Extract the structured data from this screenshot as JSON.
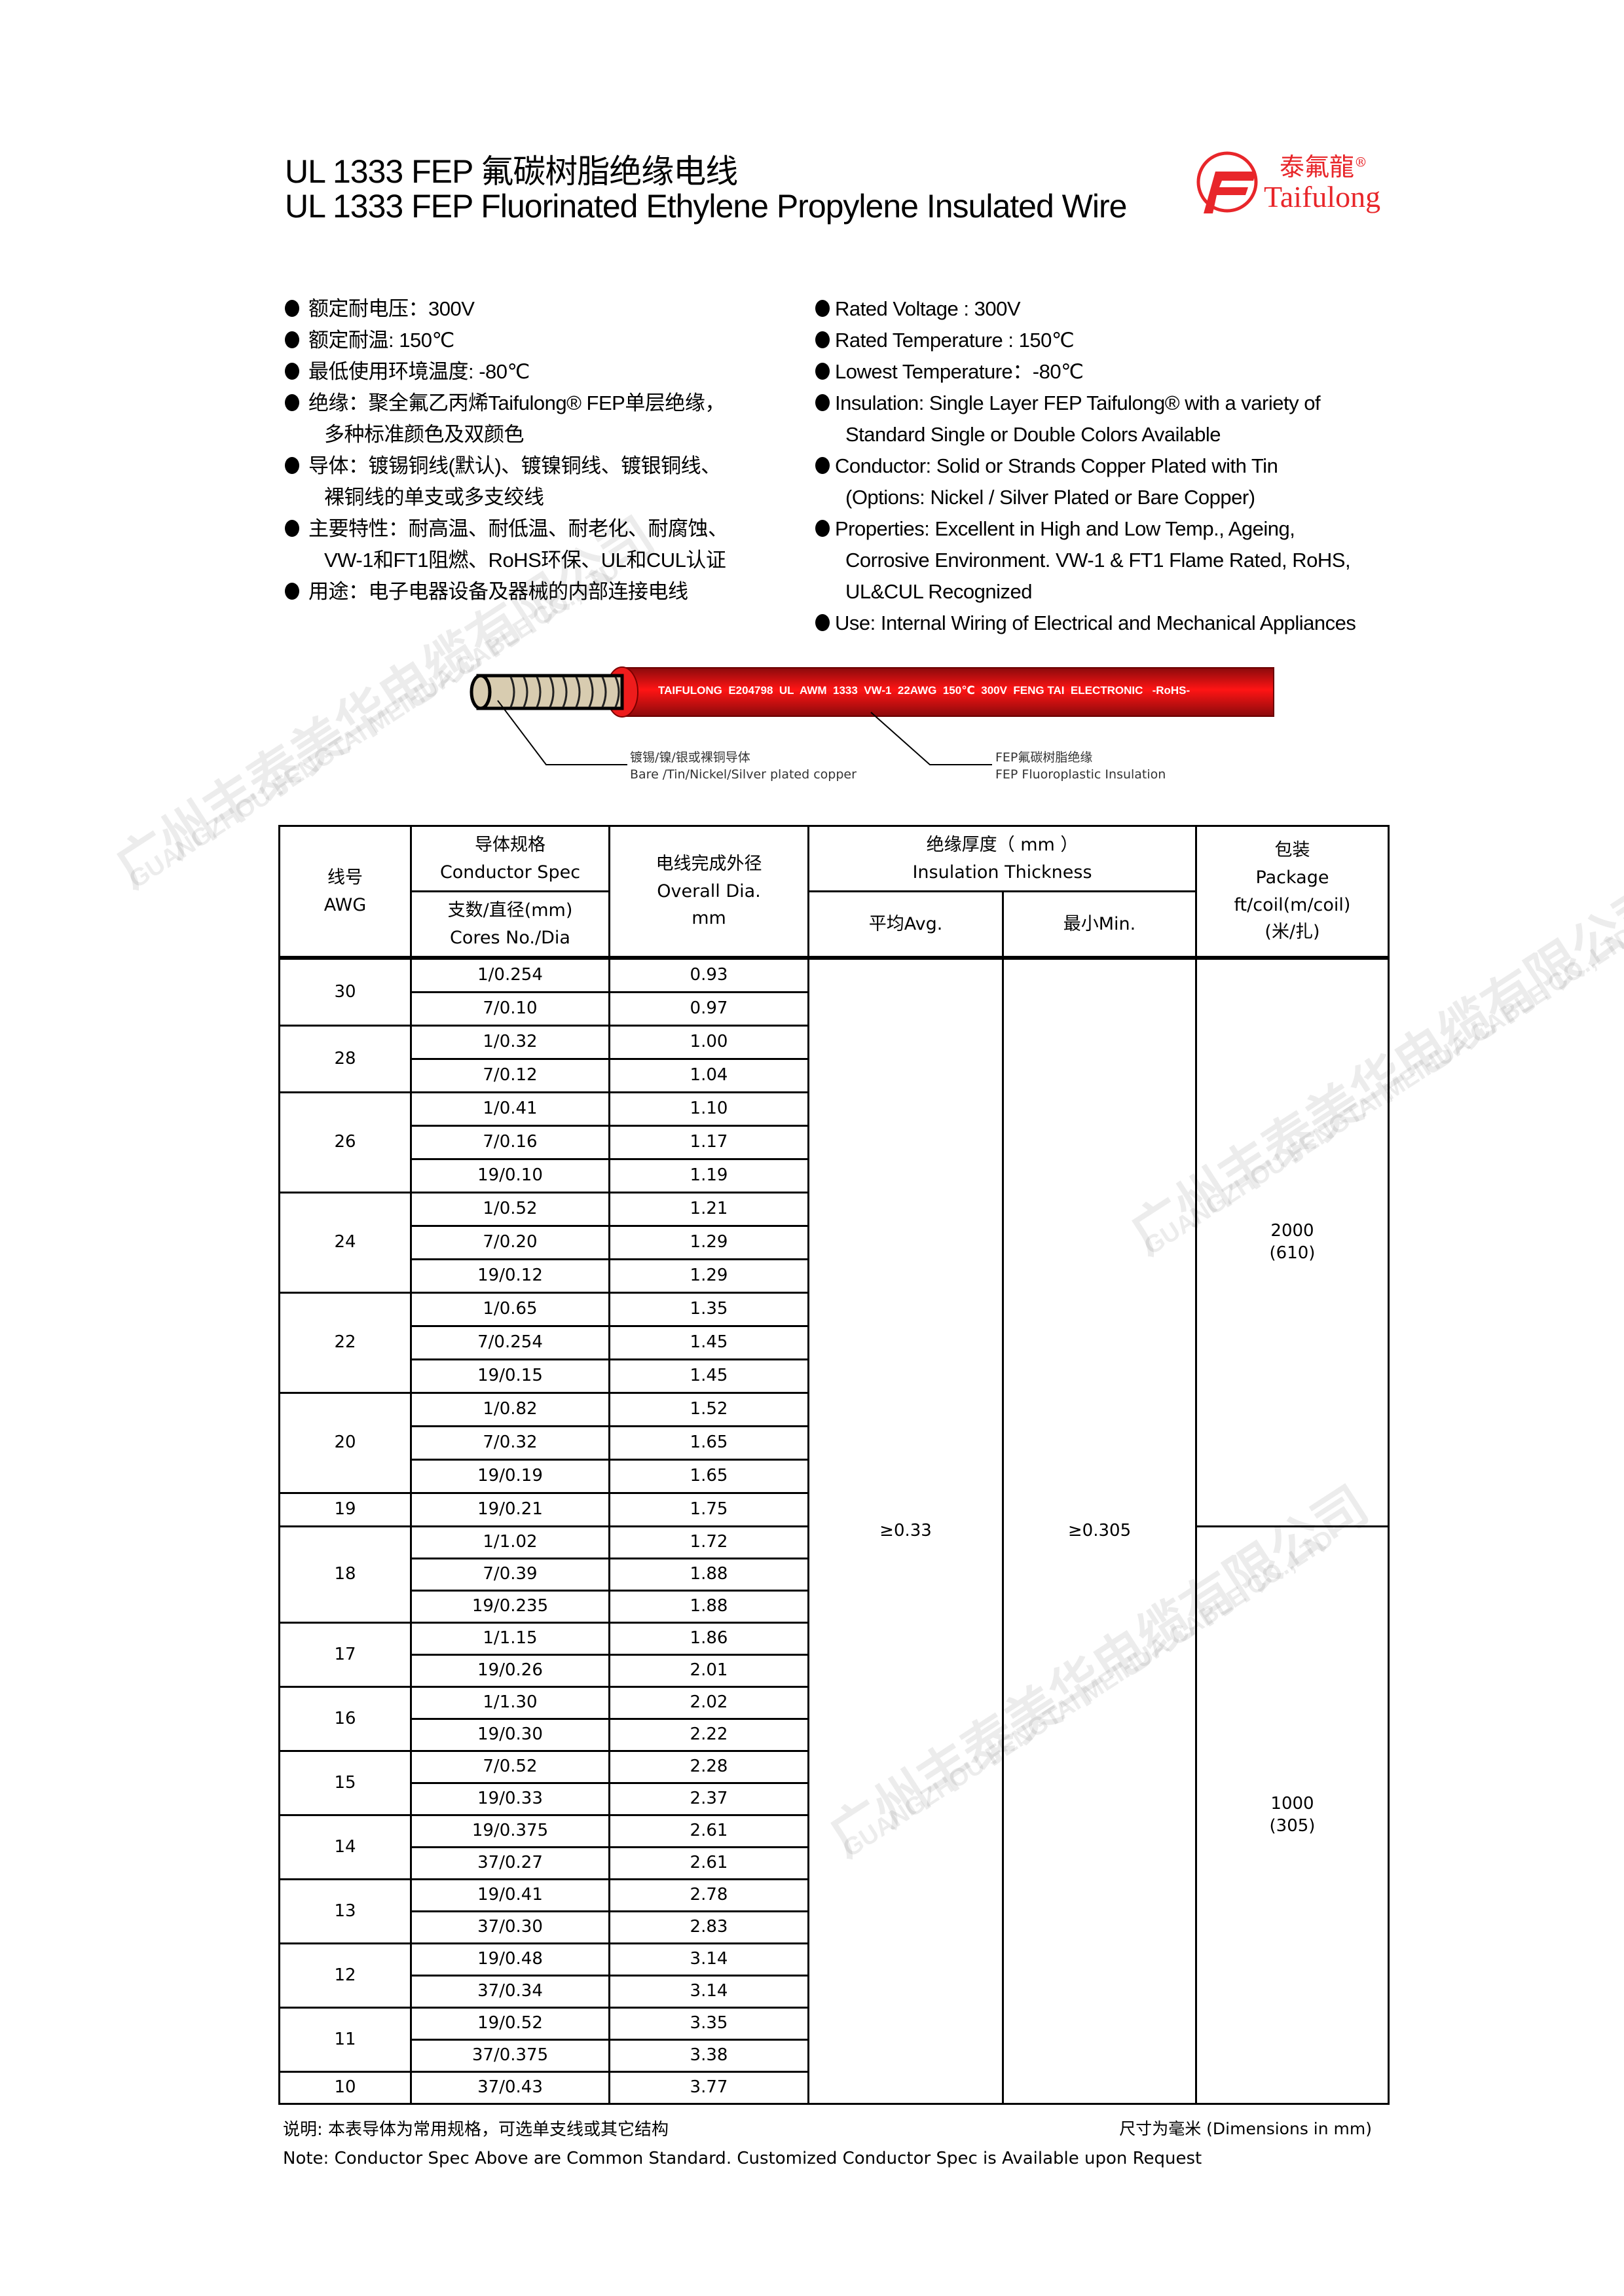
{
  "header": {
    "title_cn": "UL 1333 FEP 氟碳树脂绝缘电线",
    "title_en": "UL 1333 FEP Fluorinated Ethylene Propylene Insulated Wire",
    "logo": {
      "cn": "泰氟龍",
      "en": "Taifulong",
      "mark": "®",
      "color": "#e8262a"
    }
  },
  "specs_cn": [
    {
      "lines": [
        "额定耐电压：300V"
      ]
    },
    {
      "lines": [
        "额定耐温: 150℃"
      ]
    },
    {
      "lines": [
        "最低使用环境温度: -80℃"
      ]
    },
    {
      "lines": [
        "绝缘：聚全氟乙丙烯Taifulong® FEP单层绝缘，",
        "多种标准颜色及双颜色"
      ]
    },
    {
      "lines": [
        "导体：镀锡铜线(默认)、镀镍铜线、镀银铜线、",
        "裸铜线的单支或多支绞线"
      ]
    },
    {
      "lines": [
        "主要特性：耐高温、耐低温、耐老化、耐腐蚀、",
        "VW-1和FT1阻燃、RoHS环保、UL和CUL认证"
      ]
    },
    {
      "lines": [
        "用途：电子电器设备及器械的内部连接电线"
      ]
    }
  ],
  "specs_en": [
    {
      "lines": [
        "Rated Voltage : 300V"
      ]
    },
    {
      "lines": [
        "Rated Temperature : 150℃"
      ]
    },
    {
      "lines": [
        "Lowest Temperature：-80℃"
      ]
    },
    {
      "lines": [
        "Insulation: Single Layer FEP Taifulong® with a variety of",
        "Standard Single or Double Colors Available"
      ]
    },
    {
      "lines": [
        "Conductor: Solid or Strands Copper Plated with Tin",
        "(Options: Nickel / Silver Plated or Bare Copper)"
      ]
    },
    {
      "lines": [
        "Properties: Excellent in High and Low Temp., Ageing,",
        "Corrosive Environment. VW-1 & FT1 Flame Rated, RoHS,",
        "UL&CUL Recognized"
      ]
    },
    {
      "lines": [
        "Use: Internal Wiring of Electrical and Mechanical Appliances"
      ]
    }
  ],
  "wire": {
    "print": "TAIFULONG  E204798  UL  AWM  1333  VW-1  22AWG  150℃  300V  FENG TAI  ELECTRONIC   -RoHS-",
    "insulation_color": "#d0161b",
    "conductor_color": "#d8ccb0",
    "label_conductor_cn": "镀锡/镍/银或裸铜导体",
    "label_conductor_en": "Bare /Tin/Nickel/Silver plated copper",
    "label_insulation_cn": "FEP氟碳树脂绝缘",
    "label_insulation_en": "FEP Fluoroplastic Insulation"
  },
  "table": {
    "headers": {
      "awg_cn": "线号",
      "awg_en": "AWG",
      "conductor_cn": "导体规格",
      "conductor_en": "Conductor Spec",
      "cores_cn": "支数/直径(mm)",
      "cores_en": "Cores No./Dia",
      "overall_cn": "电线完成外径",
      "overall_en": "Overall  Dia.",
      "overall_unit": "mm",
      "insulation_cn": "绝缘厚度（ mm ）",
      "insulation_en": "Insulation Thickness",
      "avg": "平均Avg.",
      "min": "最小Min.",
      "package_cn": "包装",
      "package_en": "Package",
      "package_unit": "ft/coil(m/coil)",
      "package_unit_cn": "(米/扎)"
    },
    "insulation_avg": "≥0.33",
    "insulation_min": "≥0.305",
    "packages": [
      {
        "ft": "2000",
        "m": "(610)",
        "through_awg": "19"
      },
      {
        "ft": "1000",
        "m": "(305)",
        "through_awg": "10"
      }
    ],
    "groups": [
      {
        "awg": "30",
        "rows": [
          [
            "1/0.254",
            "0.93"
          ],
          [
            "7/0.10",
            "0.97"
          ]
        ]
      },
      {
        "awg": "28",
        "rows": [
          [
            "1/0.32",
            "1.00"
          ],
          [
            "7/0.12",
            "1.04"
          ]
        ]
      },
      {
        "awg": "26",
        "rows": [
          [
            "1/0.41",
            "1.10"
          ],
          [
            "7/0.16",
            "1.17"
          ],
          [
            "19/0.10",
            "1.19"
          ]
        ]
      },
      {
        "awg": "24",
        "rows": [
          [
            "1/0.52",
            "1.21"
          ],
          [
            "7/0.20",
            "1.29"
          ],
          [
            "19/0.12",
            "1.29"
          ]
        ]
      },
      {
        "awg": "22",
        "rows": [
          [
            "1/0.65",
            "1.35"
          ],
          [
            "7/0.254",
            "1.45"
          ],
          [
            "19/0.15",
            "1.45"
          ]
        ]
      },
      {
        "awg": "20",
        "rows": [
          [
            "1/0.82",
            "1.52"
          ],
          [
            "7/0.32",
            "1.65"
          ],
          [
            "19/0.19",
            "1.65"
          ]
        ]
      },
      {
        "awg": "19",
        "rows": [
          [
            "19/0.21",
            "1.75"
          ]
        ]
      },
      {
        "awg": "18",
        "rows": [
          [
            "1/1.02",
            "1.72"
          ],
          [
            "7/0.39",
            "1.88"
          ],
          [
            "19/0.235",
            "1.88"
          ]
        ]
      },
      {
        "awg": "17",
        "rows": [
          [
            "1/1.15",
            "1.86"
          ],
          [
            "19/0.26",
            "2.01"
          ]
        ]
      },
      {
        "awg": "16",
        "rows": [
          [
            "1/1.30",
            "2.02"
          ],
          [
            "19/0.30",
            "2.22"
          ]
        ]
      },
      {
        "awg": "15",
        "rows": [
          [
            "7/0.52",
            "2.28"
          ],
          [
            "19/0.33",
            "2.37"
          ]
        ]
      },
      {
        "awg": "14",
        "rows": [
          [
            "19/0.375",
            "2.61"
          ],
          [
            "37/0.27",
            "2.61"
          ]
        ]
      },
      {
        "awg": "13",
        "rows": [
          [
            "19/0.41",
            "2.78"
          ],
          [
            "37/0.30",
            "2.83"
          ]
        ]
      },
      {
        "awg": "12",
        "rows": [
          [
            "19/0.48",
            "3.14"
          ],
          [
            "37/0.34",
            "3.14"
          ]
        ]
      },
      {
        "awg": "11",
        "rows": [
          [
            "19/0.52",
            "3.35"
          ],
          [
            "37/0.375",
            "3.38"
          ]
        ]
      },
      {
        "awg": "10",
        "rows": [
          [
            "37/0.43",
            "3.77"
          ]
        ]
      }
    ]
  },
  "notes": {
    "cn": "说明: 本表导体为常用规格，可选单支线或其它结构",
    "units": "尺寸为毫米 (Dimensions in mm)",
    "en": "Note: Conductor Spec Above are Common Standard. Customized Conductor Spec is Available upon Request"
  },
  "watermark": {
    "cn": "广州丰泰美华电缆有限公司",
    "en": "GUANGZHOU FENGTAI MEIHUA CABLE CO.,LTD"
  }
}
